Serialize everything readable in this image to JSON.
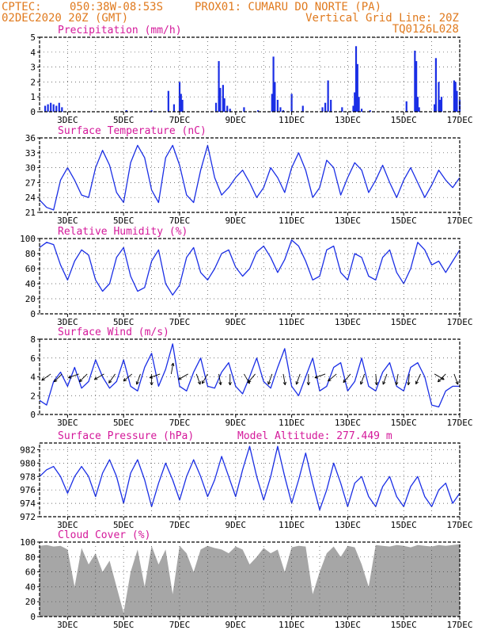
{
  "header": {
    "line1_left": "CPTEC:",
    "line1_coords": "050:38W-08:53S",
    "line1_station": "PROX01: CUMARU DO NORTE (PA)",
    "line2_left": "02DEC2020 20Z (GMT)",
    "line2_right": "Vertical Grid Line: 20Z",
    "line3_right": "TQ0126L028",
    "accent_color": "#e07a1e",
    "title_color": "#d4189a"
  },
  "xaxis": {
    "x_range": [
      0,
      15
    ],
    "tick_labels": [
      "3DEC",
      "5DEC",
      "7DEC",
      "9DEC",
      "11DEC",
      "13DEC",
      "15DEC",
      "17DEC"
    ],
    "tick_x": [
      1,
      3,
      5,
      7,
      9,
      11,
      13,
      15
    ]
  },
  "chart_data": [
    {
      "id": "precip",
      "type": "bar",
      "title": "Precipitation (mm/h)",
      "ylim": [
        0,
        5
      ],
      "yticks": [
        "0",
        "1",
        "2",
        "3",
        "4",
        "5"
      ],
      "color": "#1a2ee6",
      "x": [
        0.2,
        0.3,
        0.4,
        0.5,
        0.6,
        0.7,
        0.8,
        3.1,
        4.0,
        4.6,
        4.8,
        5.0,
        5.05,
        5.1,
        6.3,
        6.4,
        6.45,
        6.55,
        6.6,
        6.7,
        6.8,
        7.3,
        7.8,
        8.3,
        8.35,
        8.4,
        8.5,
        8.6,
        8.7,
        9.0,
        9.4,
        10.1,
        10.2,
        10.3,
        10.4,
        10.8,
        11.2,
        11.25,
        11.3,
        11.35,
        11.4,
        11.5,
        11.8,
        13.1,
        13.4,
        13.45,
        13.5,
        13.55,
        14.1,
        14.15,
        14.25,
        14.3,
        14.35,
        14.8,
        14.85,
        14.9,
        15.0
      ],
      "values": [
        0.4,
        0.5,
        0.6,
        0.5,
        0.4,
        0.6,
        0.3,
        0.1,
        0.1,
        1.4,
        0.5,
        2.0,
        1.2,
        0.8,
        0.6,
        3.4,
        1.6,
        1.8,
        0.9,
        0.4,
        0.2,
        0.3,
        0.1,
        1.2,
        3.7,
        2.0,
        0.8,
        0.3,
        0.1,
        1.2,
        0.4,
        0.3,
        0.6,
        2.1,
        0.8,
        0.3,
        0.4,
        1.3,
        4.4,
        3.2,
        1.0,
        0.2,
        0.1,
        0.7,
        4.1,
        3.4,
        1.0,
        0.3,
        0.5,
        3.6,
        2.0,
        0.8,
        1.0,
        2.1,
        2.0,
        1.4,
        0.8
      ]
    },
    {
      "id": "temp",
      "type": "line",
      "title": "Surface Temperature (nC)",
      "ylim": [
        21,
        36
      ],
      "yticks": [
        "21",
        "24",
        "27",
        "30",
        "33",
        "36"
      ],
      "color": "#1a2ee6",
      "x": [
        0,
        0.25,
        0.5,
        0.75,
        1.0,
        1.25,
        1.5,
        1.75,
        2.0,
        2.25,
        2.5,
        2.75,
        3.0,
        3.25,
        3.5,
        3.75,
        4.0,
        4.25,
        4.5,
        4.75,
        5.0,
        5.25,
        5.5,
        5.75,
        6.0,
        6.25,
        6.5,
        6.75,
        7.0,
        7.25,
        7.5,
        7.75,
        8.0,
        8.25,
        8.5,
        8.75,
        9.0,
        9.25,
        9.5,
        9.75,
        10.0,
        10.25,
        10.5,
        10.75,
        11.0,
        11.25,
        11.5,
        11.75,
        12.0,
        12.25,
        12.5,
        12.75,
        13.0,
        13.25,
        13.5,
        13.75,
        14.0,
        14.25,
        14.5,
        14.75,
        15.0
      ],
      "values": [
        23.5,
        22.0,
        21.5,
        27.5,
        30.0,
        27.5,
        24.5,
        24.0,
        30.0,
        33.5,
        30.5,
        25.0,
        23.0,
        31.0,
        34.5,
        32.0,
        25.5,
        23.0,
        32.0,
        34.5,
        30.5,
        24.5,
        23.0,
        29.5,
        34.5,
        28.0,
        24.5,
        26.0,
        28.0,
        29.5,
        27.0,
        24.0,
        26.0,
        30.0,
        28.0,
        25.0,
        30.0,
        33.0,
        29.5,
        24.0,
        26.0,
        31.5,
        30.0,
        24.5,
        28.0,
        31.0,
        29.5,
        25.0,
        27.5,
        30.5,
        27.0,
        24.0,
        27.5,
        30.0,
        27.0,
        24.0,
        26.5,
        29.5,
        27.5,
        26.0,
        28.0
      ]
    },
    {
      "id": "rh",
      "type": "line",
      "title": "Relative Humidity (%)",
      "ylim": [
        0,
        100
      ],
      "yticks": [
        "0",
        "20",
        "40",
        "60",
        "80",
        "100"
      ],
      "color": "#1a2ee6",
      "x": [
        0,
        0.25,
        0.5,
        0.75,
        1.0,
        1.25,
        1.5,
        1.75,
        2.0,
        2.25,
        2.5,
        2.75,
        3.0,
        3.25,
        3.5,
        3.75,
        4.0,
        4.25,
        4.5,
        4.75,
        5.0,
        5.25,
        5.5,
        5.75,
        6.0,
        6.25,
        6.5,
        6.75,
        7.0,
        7.25,
        7.5,
        7.75,
        8.0,
        8.25,
        8.5,
        8.75,
        9.0,
        9.25,
        9.5,
        9.75,
        10.0,
        10.25,
        10.5,
        10.75,
        11.0,
        11.25,
        11.5,
        11.75,
        12.0,
        12.25,
        12.5,
        12.75,
        13.0,
        13.25,
        13.5,
        13.75,
        14.0,
        14.25,
        14.5,
        14.75,
        15.0
      ],
      "values": [
        88,
        95,
        92,
        65,
        45,
        70,
        85,
        78,
        45,
        30,
        40,
        75,
        88,
        50,
        30,
        35,
        70,
        85,
        40,
        25,
        38,
        75,
        88,
        55,
        45,
        60,
        80,
        85,
        62,
        50,
        60,
        82,
        90,
        75,
        55,
        72,
        98,
        90,
        70,
        45,
        50,
        85,
        90,
        55,
        45,
        80,
        75,
        50,
        45,
        75,
        85,
        55,
        40,
        60,
        95,
        85,
        65,
        70,
        55,
        70,
        85
      ]
    },
    {
      "id": "wind",
      "type": "line",
      "title": "Surface Wind (m/s)",
      "ylim": [
        0,
        8
      ],
      "yticks": [
        "0",
        "2",
        "4",
        "6",
        "8"
      ],
      "color": "#1a2ee6",
      "x": [
        0,
        0.25,
        0.5,
        0.75,
        1.0,
        1.25,
        1.5,
        1.75,
        2.0,
        2.25,
        2.5,
        2.75,
        3.0,
        3.25,
        3.5,
        3.75,
        4.0,
        4.25,
        4.5,
        4.75,
        5.0,
        5.25,
        5.5,
        5.75,
        6.0,
        6.25,
        6.5,
        6.75,
        7.0,
        7.25,
        7.5,
        7.75,
        8.0,
        8.25,
        8.5,
        8.75,
        9.0,
        9.25,
        9.5,
        9.75,
        10.0,
        10.25,
        10.5,
        10.75,
        11.0,
        11.25,
        11.5,
        11.75,
        12.0,
        12.25,
        12.5,
        12.75,
        13.0,
        13.25,
        13.5,
        13.75,
        14.0,
        14.25,
        14.5,
        14.75,
        15.0
      ],
      "values": [
        1.5,
        1.0,
        3.5,
        4.5,
        3.0,
        5.0,
        2.8,
        3.5,
        5.8,
        4.0,
        2.8,
        3.5,
        5.8,
        3.0,
        2.5,
        5.0,
        6.5,
        3.0,
        4.8,
        7.5,
        3.0,
        2.5,
        4.5,
        6.0,
        3.0,
        2.8,
        4.5,
        5.5,
        3.0,
        2.2,
        4.0,
        6.0,
        3.5,
        2.8,
        5.0,
        7.0,
        3.0,
        2.0,
        4.0,
        6.0,
        2.5,
        3.0,
        5.0,
        5.5,
        2.5,
        3.5,
        6.0,
        3.0,
        2.5,
        4.5,
        5.5,
        3.0,
        2.5,
        5.0,
        5.5,
        4.0,
        1.0,
        0.8,
        2.5,
        3.0,
        3.0
      ]
    },
    {
      "id": "pressure",
      "type": "line",
      "title": "Surface Pressure (hPa)",
      "annotation": "Model Altitude: 277.449 m",
      "ylim": [
        972,
        983
      ],
      "yticks": [
        "972",
        "974",
        "976",
        "978",
        "980",
        "982"
      ],
      "color": "#1a2ee6",
      "x": [
        0,
        0.25,
        0.5,
        0.75,
        1.0,
        1.25,
        1.5,
        1.75,
        2.0,
        2.25,
        2.5,
        2.75,
        3.0,
        3.25,
        3.5,
        3.75,
        4.0,
        4.25,
        4.5,
        4.75,
        5.0,
        5.25,
        5.5,
        5.75,
        6.0,
        6.25,
        6.5,
        6.75,
        7.0,
        7.25,
        7.5,
        7.75,
        8.0,
        8.25,
        8.5,
        8.75,
        9.0,
        9.25,
        9.5,
        9.75,
        10.0,
        10.25,
        10.5,
        10.75,
        11.0,
        11.25,
        11.5,
        11.75,
        12.0,
        12.25,
        12.5,
        12.75,
        13.0,
        13.25,
        13.5,
        13.75,
        14.0,
        14.25,
        14.5,
        14.75,
        15.0
      ],
      "values": [
        978.0,
        979.0,
        979.5,
        978.0,
        975.5,
        978.0,
        979.5,
        978.0,
        975.0,
        978.5,
        980.5,
        978.0,
        974.0,
        978.5,
        980.5,
        977.5,
        973.5,
        977.0,
        980.0,
        977.5,
        974.5,
        978.0,
        980.5,
        978.0,
        975.0,
        977.5,
        981.0,
        978.0,
        975.0,
        979.0,
        982.5,
        978.0,
        974.5,
        978.0,
        982.5,
        978.0,
        974.0,
        977.5,
        981.5,
        977.0,
        973.0,
        976.0,
        980.0,
        977.0,
        973.5,
        977.0,
        978.0,
        975.0,
        973.5,
        976.5,
        978.0,
        975.0,
        973.5,
        976.5,
        978.0,
        975.0,
        973.5,
        976.0,
        977.0,
        974.0,
        975.5
      ]
    },
    {
      "id": "cloud",
      "type": "area",
      "title": "Cloud Cover (%)",
      "ylim": [
        0,
        100
      ],
      "yticks": [
        "0",
        "20",
        "40",
        "60",
        "80",
        "100"
      ],
      "color": "#a6a6a6",
      "x": [
        0,
        0.25,
        0.5,
        0.75,
        1.0,
        1.25,
        1.5,
        1.75,
        2.0,
        2.25,
        2.5,
        2.75,
        3.0,
        3.25,
        3.5,
        3.75,
        4.0,
        4.25,
        4.5,
        4.75,
        5.0,
        5.25,
        5.5,
        5.75,
        6.0,
        6.25,
        6.5,
        6.75,
        7.0,
        7.25,
        7.5,
        7.75,
        8.0,
        8.25,
        8.5,
        8.75,
        9.0,
        9.25,
        9.5,
        9.75,
        10.0,
        10.25,
        10.5,
        10.75,
        11.0,
        11.25,
        11.5,
        11.75,
        12.0,
        12.25,
        12.5,
        12.75,
        13.0,
        13.25,
        13.5,
        13.75,
        14.0,
        14.25,
        14.5,
        14.75,
        15.0
      ],
      "values": [
        95,
        96,
        94,
        95,
        90,
        40,
        92,
        70,
        85,
        60,
        75,
        40,
        5,
        60,
        90,
        40,
        95,
        70,
        90,
        30,
        95,
        85,
        60,
        90,
        95,
        92,
        90,
        85,
        94,
        90,
        70,
        80,
        92,
        85,
        90,
        60,
        93,
        95,
        94,
        30,
        60,
        85,
        94,
        80,
        95,
        93,
        70,
        40,
        96,
        95,
        94,
        96,
        95,
        93,
        96,
        95,
        94,
        96,
        95,
        96,
        97
      ]
    }
  ],
  "wind_arrows": [
    {
      "x": 0.4,
      "angle": 235
    },
    {
      "x": 0.8,
      "angle": 225
    },
    {
      "x": 1.4,
      "angle": 250
    },
    {
      "x": 1.7,
      "angle": 225
    },
    {
      "x": 2.3,
      "angle": 240
    },
    {
      "x": 2.7,
      "angle": 215
    },
    {
      "x": 3.3,
      "angle": 230
    },
    {
      "x": 3.6,
      "angle": 200
    },
    {
      "x": 4.0,
      "angle": 180
    },
    {
      "x": 4.3,
      "angle": 250
    },
    {
      "x": 4.7,
      "angle": 10
    },
    {
      "x": 5.3,
      "angle": 240
    },
    {
      "x": 5.6,
      "angle": 160
    },
    {
      "x": 6.0,
      "angle": 210
    },
    {
      "x": 6.4,
      "angle": 170
    },
    {
      "x": 6.8,
      "angle": 180
    },
    {
      "x": 7.3,
      "angle": 150
    },
    {
      "x": 7.7,
      "angle": 220
    },
    {
      "x": 8.3,
      "angle": 200
    },
    {
      "x": 8.7,
      "angle": 170
    },
    {
      "x": 9.3,
      "angle": 200
    },
    {
      "x": 9.6,
      "angle": 180
    },
    {
      "x": 10.2,
      "angle": 250
    },
    {
      "x": 10.6,
      "angle": 230
    },
    {
      "x": 11.1,
      "angle": 220
    },
    {
      "x": 11.6,
      "angle": 200
    },
    {
      "x": 12.0,
      "angle": 175
    },
    {
      "x": 12.4,
      "angle": 200
    },
    {
      "x": 12.8,
      "angle": 190
    },
    {
      "x": 13.2,
      "angle": 185
    },
    {
      "x": 13.6,
      "angle": 205
    },
    {
      "x": 14.1,
      "angle": 120
    },
    {
      "x": 14.5,
      "angle": 225
    },
    {
      "x": 14.8,
      "angle": 160
    }
  ]
}
